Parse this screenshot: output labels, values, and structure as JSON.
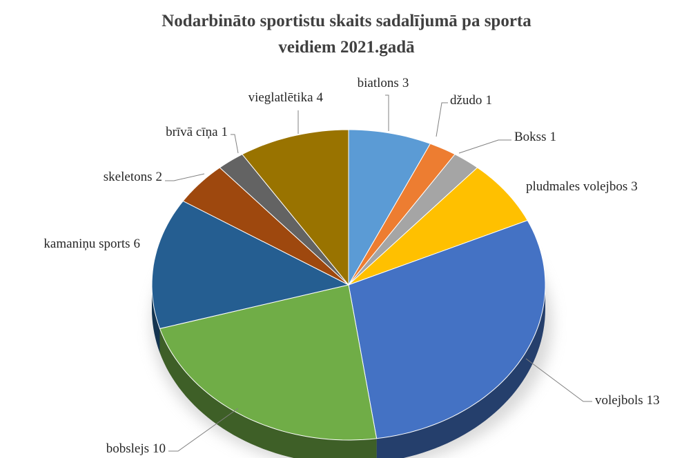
{
  "chart_data": {
    "type": "pie3d",
    "title": "Nodarbināto sportistu skaits sadalījumā pa sporta veidiem 2021.gadā",
    "categories": [
      "biatlons",
      "džudo",
      "Bokss",
      "pludmales volejbos",
      "volejbols",
      "bobslejs",
      "kamaniņu sports",
      "skeletons",
      "brīvā cīņa",
      "vieglatlētika"
    ],
    "values": [
      3,
      1,
      1,
      3,
      13,
      10,
      6,
      2,
      1,
      4
    ],
    "colors": [
      "#5b9bd5",
      "#ed7d31",
      "#a5a5a5",
      "#ffc000",
      "#4472c4",
      "#70ad47",
      "#255e91",
      "#9e480e",
      "#636363",
      "#997300"
    ]
  }
}
